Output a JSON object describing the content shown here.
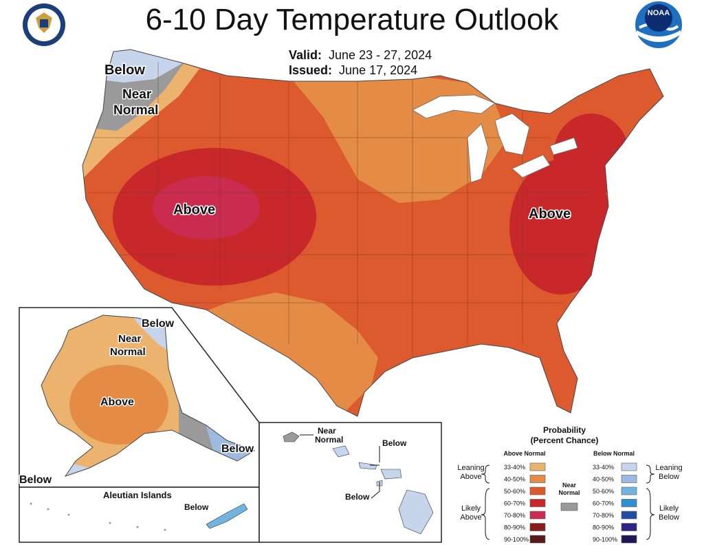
{
  "title": "6-10 Day Temperature Outlook",
  "valid_label": "Valid:",
  "valid_dates": "June 23 - 27, 2024",
  "issued_label": "Issued:",
  "issued_date": "June 17, 2024",
  "logos": {
    "left": "department-of-commerce-seal",
    "right": "noaa-logo",
    "noaa_text": "NOAA"
  },
  "map_labels": {
    "conus_below": "Below",
    "conus_near_1": "Near",
    "conus_near_2": "Normal",
    "conus_above_west": "Above",
    "conus_above_east": "Above",
    "alaska_below_n": "Below",
    "alaska_near_1": "Near",
    "alaska_near_2": "Normal",
    "alaska_above": "Above",
    "alaska_below_se": "Below",
    "alaska_below_sw": "Below",
    "aleutian_title": "Aleutian Islands",
    "aleutian_below": "Below",
    "hawaii_near_1": "Near",
    "hawaii_near_2": "Normal",
    "hawaii_below_1": "Below",
    "hawaii_below_2": "Below"
  },
  "legend": {
    "title_1": "Probability",
    "title_2": "(Percent Chance)",
    "above_header": "Above Normal",
    "below_header": "Below Normal",
    "near_1": "Near",
    "near_2": "Normal",
    "leaning_above_1": "Leaning",
    "leaning_above_2": "Above",
    "likely_above_1": "Likely",
    "likely_above_2": "Above",
    "leaning_below_1": "Leaning",
    "leaning_below_2": "Below",
    "likely_below_1": "Likely",
    "likely_below_2": "Below",
    "above_classes": [
      {
        "range": "33-40%",
        "color": "#ebb36d"
      },
      {
        "range": "40-50%",
        "color": "#e48b45"
      },
      {
        "range": "50-60%",
        "color": "#dd5a2e"
      },
      {
        "range": "60-70%",
        "color": "#c9282a"
      },
      {
        "range": "70-80%",
        "color": "#c92c4e"
      },
      {
        "range": "80-90%",
        "color": "#8b1a1a"
      },
      {
        "range": "90-100%",
        "color": "#5a1a1a"
      }
    ],
    "below_classes": [
      {
        "range": "33-40%",
        "color": "#c6d4ec"
      },
      {
        "range": "40-50%",
        "color": "#9dbbe0"
      },
      {
        "range": "50-60%",
        "color": "#71b4e1"
      },
      {
        "range": "60-70%",
        "color": "#2f8fd2"
      },
      {
        "range": "70-80%",
        "color": "#1f4fa3"
      },
      {
        "range": "80-90%",
        "color": "#2b2585"
      },
      {
        "range": "90-100%",
        "color": "#1e1655"
      }
    ],
    "near_color": "#9a9a9a"
  }
}
